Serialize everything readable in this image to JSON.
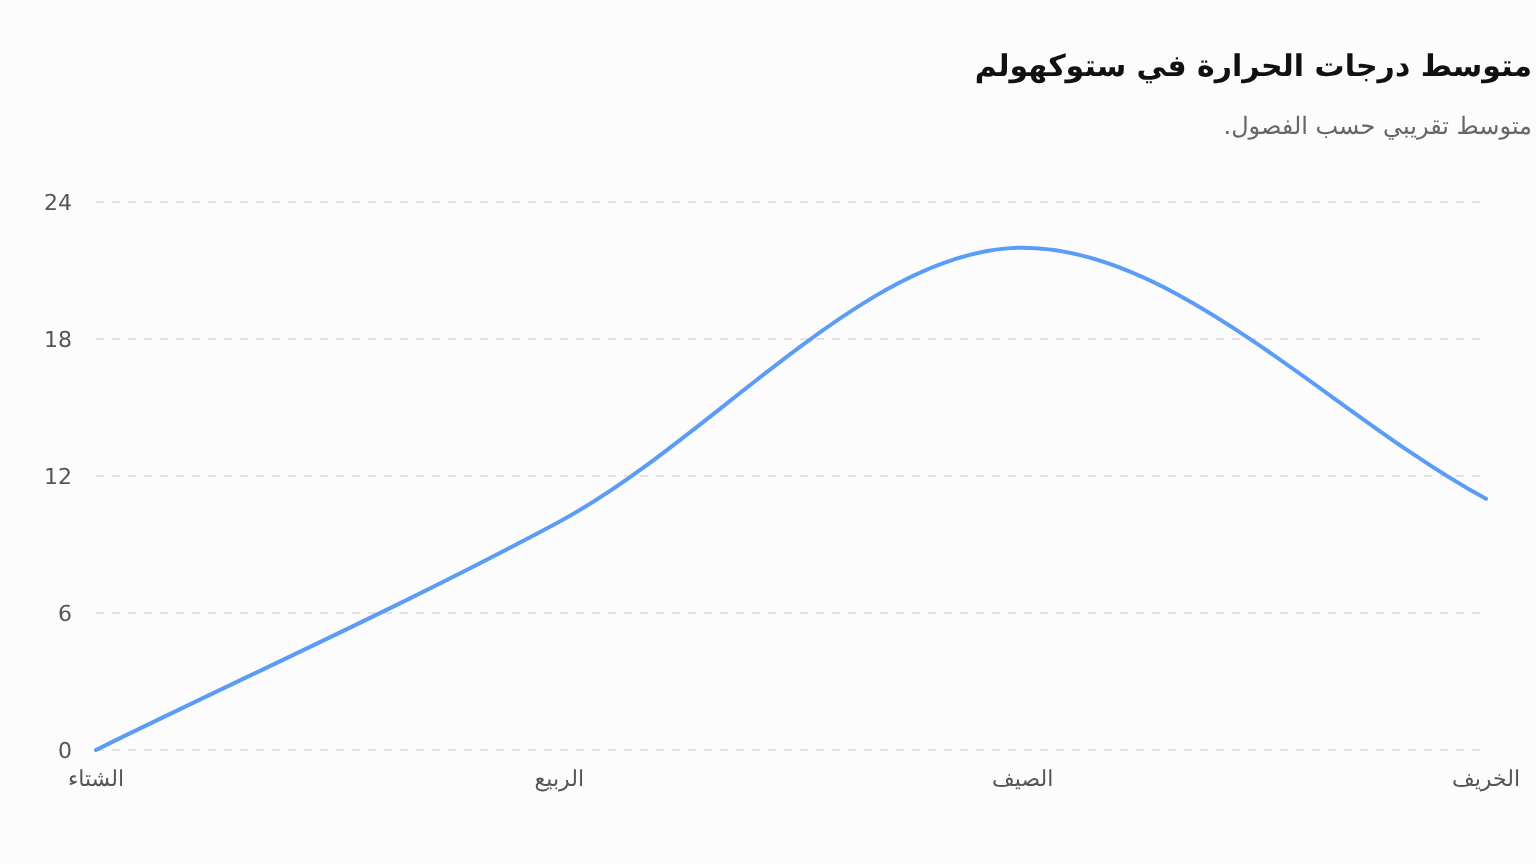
{
  "chart_data": {
    "type": "line",
    "title": "متوسط درجات الحرارة في ستوكهولم",
    "subtitle": "متوسط تقريبي حسب الفصول.",
    "categories": [
      "الشتاء",
      "الربيع",
      "الصيف",
      "الخريف"
    ],
    "series": [
      {
        "color": "#5b9cf6",
        "values": [
          0,
          10,
          22,
          11
        ]
      }
    ],
    "ylim": [
      0,
      24
    ],
    "yticks": [
      0,
      6,
      12,
      18,
      24
    ],
    "grid": "y",
    "line_style": "solid"
  }
}
